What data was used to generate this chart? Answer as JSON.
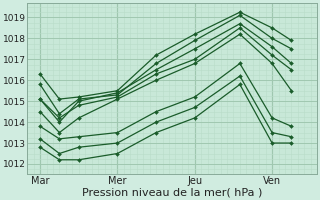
{
  "bg_color": "#c8e8d8",
  "fig_bg_color": "#d0ece0",
  "grid_color_major": "#a0c8b0",
  "grid_color_minor": "#b8dcc8",
  "line_color": "#1a5c2a",
  "marker": "D",
  "markersize": 2.0,
  "linewidth": 0.9,
  "xlabel": "Pression niveau de la mer( hPa )",
  "xlabel_fontsize": 8,
  "xtick_labels": [
    "Mar",
    "Mer",
    "Jeu",
    "Ven"
  ],
  "ytick_vals": [
    1012,
    1013,
    1014,
    1015,
    1016,
    1017,
    1018,
    1019
  ],
  "ylim": [
    1011.5,
    1019.7
  ],
  "xlim": [
    0,
    90
  ],
  "xtick_positions": [
    4,
    28,
    52,
    76
  ],
  "series": [
    {
      "x": [
        4,
        10,
        16,
        28,
        40,
        52,
        66,
        76,
        82
      ],
      "y": [
        1016.3,
        1015.1,
        1015.2,
        1015.5,
        1017.2,
        1018.2,
        1019.25,
        1018.5,
        1017.9
      ]
    },
    {
      "x": [
        4,
        10,
        16,
        28,
        40,
        52,
        66,
        76,
        82
      ],
      "y": [
        1015.8,
        1014.4,
        1015.1,
        1015.3,
        1016.8,
        1017.9,
        1019.1,
        1018.0,
        1017.5
      ]
    },
    {
      "x": [
        4,
        10,
        16,
        28,
        40,
        52,
        66,
        76,
        82
      ],
      "y": [
        1015.1,
        1014.0,
        1015.0,
        1015.4,
        1016.5,
        1017.5,
        1018.7,
        1017.6,
        1016.8
      ]
    },
    {
      "x": [
        4,
        10,
        16,
        28,
        40,
        52,
        66,
        76,
        82
      ],
      "y": [
        1014.5,
        1013.5,
        1014.2,
        1015.1,
        1016.0,
        1016.8,
        1018.2,
        1016.8,
        1015.5
      ]
    },
    {
      "x": [
        4,
        10,
        16,
        28,
        40,
        52,
        66,
        76,
        82
      ],
      "y": [
        1013.8,
        1013.2,
        1013.3,
        1013.5,
        1014.5,
        1015.2,
        1016.8,
        1014.2,
        1013.8
      ]
    },
    {
      "x": [
        4,
        10,
        16,
        28,
        40,
        52,
        66,
        76,
        82
      ],
      "y": [
        1013.2,
        1012.5,
        1012.8,
        1013.0,
        1014.0,
        1014.7,
        1016.2,
        1013.5,
        1013.3
      ]
    },
    {
      "x": [
        4,
        10,
        16,
        28,
        40,
        52,
        66,
        76,
        82
      ],
      "y": [
        1012.8,
        1012.2,
        1012.2,
        1012.5,
        1013.5,
        1014.2,
        1015.8,
        1013.0,
        1013.0
      ]
    },
    {
      "x": [
        4,
        10,
        16,
        28,
        40,
        52,
        66,
        76,
        82
      ],
      "y": [
        1015.1,
        1014.2,
        1014.8,
        1015.2,
        1016.3,
        1017.0,
        1018.5,
        1017.2,
        1016.5
      ]
    }
  ],
  "vline_x": [
    4,
    28,
    52,
    76
  ]
}
